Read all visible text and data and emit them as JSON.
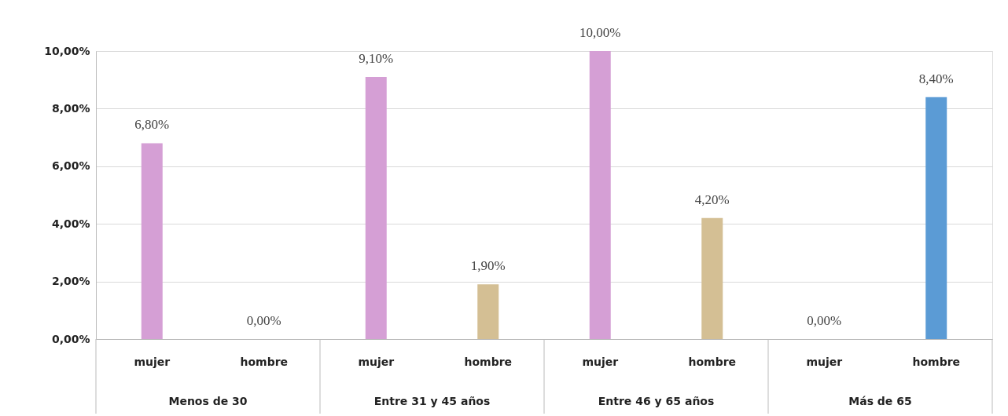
{
  "chart_data": {
    "type": "bar",
    "categories": [
      "mujer",
      "hombre",
      "mujer",
      "hombre",
      "mujer",
      "hombre",
      "mujer",
      "hombre"
    ],
    "values": [
      6.8,
      0,
      9.1,
      1.9,
      10,
      4.2,
      0,
      8.4
    ],
    "colors": [
      "#d59fd5",
      "#d4bf94",
      "#d59fd5",
      "#d4bf94",
      "#d59fd5",
      "#d4bf94",
      "#d59fd5",
      "#5b9bd5"
    ],
    "value_labels": [
      "6,80%",
      "0,00%",
      "9,10%",
      "1,90%",
      "10,00%",
      "4,20%",
      "0,00%",
      "8,40%"
    ],
    "annotations": [
      "Menos de 30",
      "Entre 31 y 45 años",
      "Entre 46 y 65 años",
      "Más de 65"
    ],
    "ylim": [
      0,
      10
    ],
    "yticks": [
      {
        "value": 0,
        "label": "0,00%"
      },
      {
        "value": 2,
        "label": "2,00%"
      },
      {
        "value": 4,
        "label": "4,00%"
      },
      {
        "value": 6,
        "label": "6,00%"
      },
      {
        "value": 8,
        "label": "8,00%"
      },
      {
        "value": 10,
        "label": "10,00%"
      }
    ],
    "grid": "y"
  }
}
